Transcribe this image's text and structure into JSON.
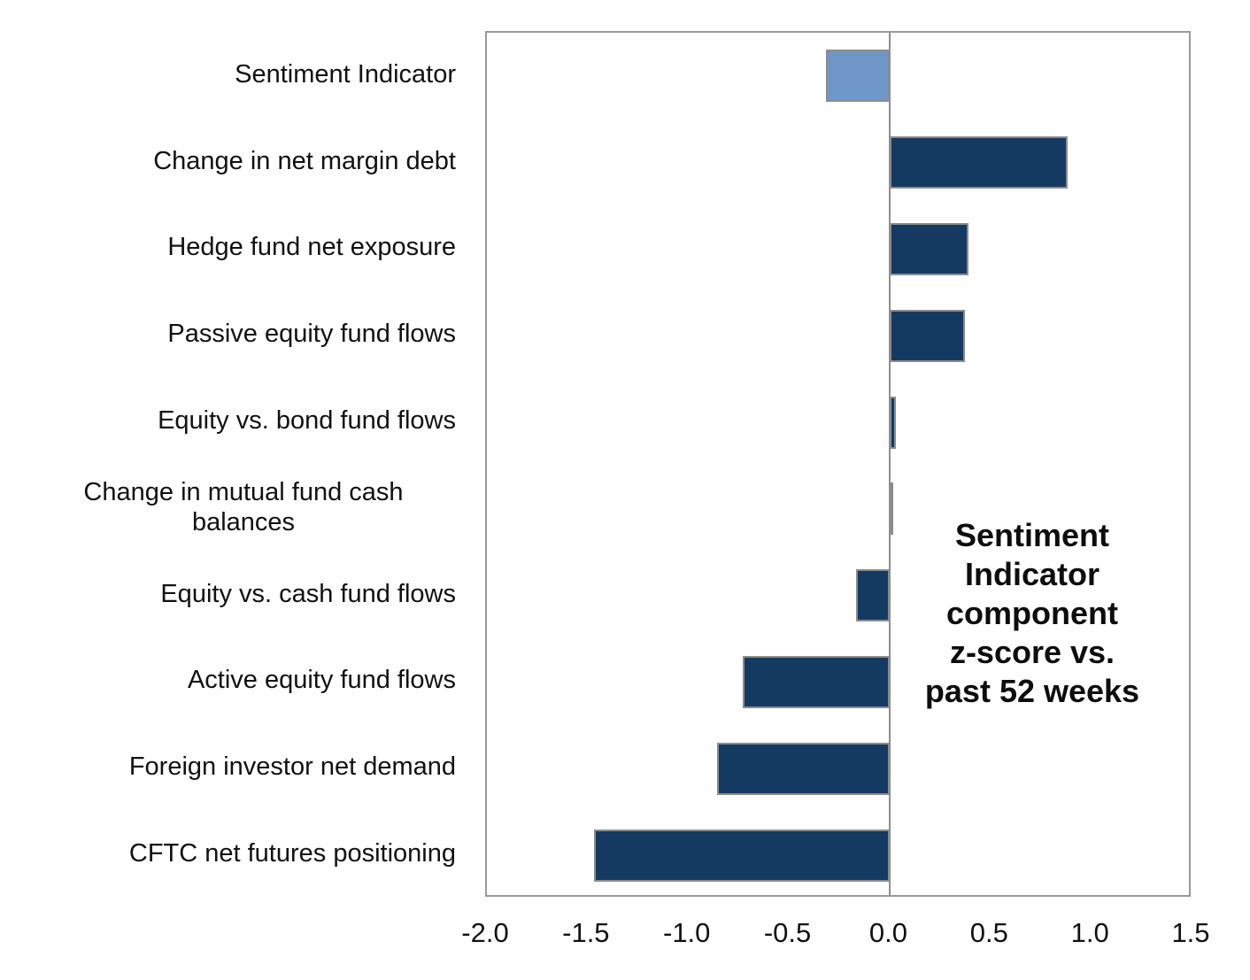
{
  "chart_data": {
    "type": "bar",
    "orientation": "horizontal",
    "title": "",
    "annotation": "Sentiment\nIndicator\ncomponent\nz-score vs.\npast 52 weeks",
    "categories": [
      "Sentiment Indicator",
      "Change in net margin debt",
      "Hedge fund net exposure",
      "Passive equity fund flows",
      "Equity vs. bond fund flows",
      "Change in mutual fund cash balances",
      "Equity vs. cash fund flows",
      "Active equity fund flows",
      "Foreign investor net demand",
      "CFTC net futures positioning"
    ],
    "values": [
      -0.32,
      0.88,
      0.39,
      0.37,
      0.03,
      0.01,
      -0.17,
      -0.73,
      -0.86,
      -1.47
    ],
    "highlight_index": 0,
    "xlim": [
      -2.0,
      1.5
    ],
    "x_ticks": [
      -2.0,
      -1.5,
      -1.0,
      -0.5,
      0.0,
      0.5,
      1.0,
      1.5
    ],
    "x_tick_labels": [
      "-2.0",
      "-1.5",
      "-1.0",
      "-0.5",
      "0.0",
      "0.5",
      "1.0",
      "1.5"
    ],
    "grid": "off",
    "legend": null,
    "colors": {
      "highlight_bar": "#6e96c6",
      "bar": "#143a62",
      "bar_border": "#8c8c8c",
      "axis_border": "#9a9a9a",
      "zero_line": "#8f8f8f",
      "text": "#111111"
    }
  }
}
